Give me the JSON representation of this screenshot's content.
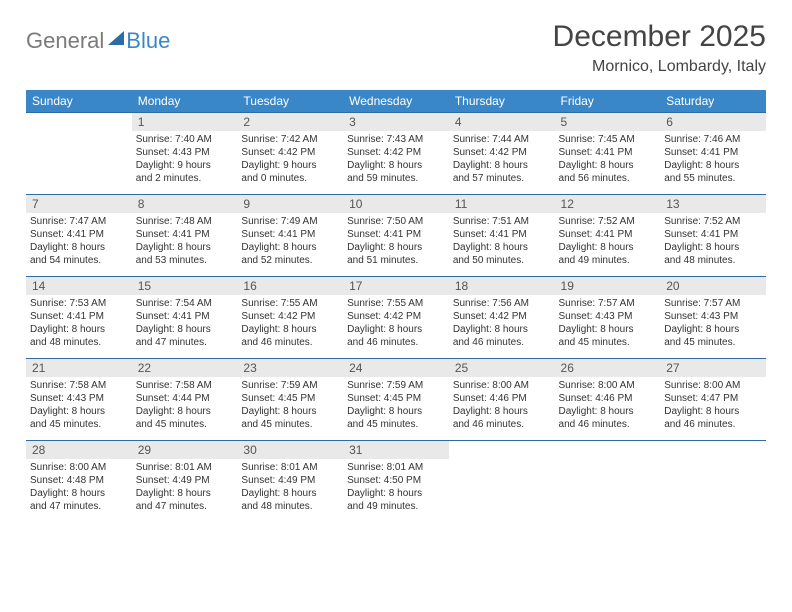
{
  "logo": {
    "part1": "General",
    "part2": "Blue"
  },
  "title": "December 2025",
  "subtitle": "Mornico, Lombardy, Italy",
  "colors": {
    "header_bg": "#3a87c7",
    "header_text": "#ffffff",
    "daynum_bg": "#e9e9e9",
    "border": "#2d6ca2",
    "logo_gray": "#7a7a7a",
    "logo_blue": "#3a87c7"
  },
  "weekdays": [
    "Sunday",
    "Monday",
    "Tuesday",
    "Wednesday",
    "Thursday",
    "Friday",
    "Saturday"
  ],
  "weeks": [
    [
      {
        "empty": true
      },
      {
        "n": "1",
        "sr": "Sunrise: 7:40 AM",
        "ss": "Sunset: 4:43 PM",
        "d1": "Daylight: 9 hours",
        "d2": "and 2 minutes."
      },
      {
        "n": "2",
        "sr": "Sunrise: 7:42 AM",
        "ss": "Sunset: 4:42 PM",
        "d1": "Daylight: 9 hours",
        "d2": "and 0 minutes."
      },
      {
        "n": "3",
        "sr": "Sunrise: 7:43 AM",
        "ss": "Sunset: 4:42 PM",
        "d1": "Daylight: 8 hours",
        "d2": "and 59 minutes."
      },
      {
        "n": "4",
        "sr": "Sunrise: 7:44 AM",
        "ss": "Sunset: 4:42 PM",
        "d1": "Daylight: 8 hours",
        "d2": "and 57 minutes."
      },
      {
        "n": "5",
        "sr": "Sunrise: 7:45 AM",
        "ss": "Sunset: 4:41 PM",
        "d1": "Daylight: 8 hours",
        "d2": "and 56 minutes."
      },
      {
        "n": "6",
        "sr": "Sunrise: 7:46 AM",
        "ss": "Sunset: 4:41 PM",
        "d1": "Daylight: 8 hours",
        "d2": "and 55 minutes."
      }
    ],
    [
      {
        "n": "7",
        "sr": "Sunrise: 7:47 AM",
        "ss": "Sunset: 4:41 PM",
        "d1": "Daylight: 8 hours",
        "d2": "and 54 minutes."
      },
      {
        "n": "8",
        "sr": "Sunrise: 7:48 AM",
        "ss": "Sunset: 4:41 PM",
        "d1": "Daylight: 8 hours",
        "d2": "and 53 minutes."
      },
      {
        "n": "9",
        "sr": "Sunrise: 7:49 AM",
        "ss": "Sunset: 4:41 PM",
        "d1": "Daylight: 8 hours",
        "d2": "and 52 minutes."
      },
      {
        "n": "10",
        "sr": "Sunrise: 7:50 AM",
        "ss": "Sunset: 4:41 PM",
        "d1": "Daylight: 8 hours",
        "d2": "and 51 minutes."
      },
      {
        "n": "11",
        "sr": "Sunrise: 7:51 AM",
        "ss": "Sunset: 4:41 PM",
        "d1": "Daylight: 8 hours",
        "d2": "and 50 minutes."
      },
      {
        "n": "12",
        "sr": "Sunrise: 7:52 AM",
        "ss": "Sunset: 4:41 PM",
        "d1": "Daylight: 8 hours",
        "d2": "and 49 minutes."
      },
      {
        "n": "13",
        "sr": "Sunrise: 7:52 AM",
        "ss": "Sunset: 4:41 PM",
        "d1": "Daylight: 8 hours",
        "d2": "and 48 minutes."
      }
    ],
    [
      {
        "n": "14",
        "sr": "Sunrise: 7:53 AM",
        "ss": "Sunset: 4:41 PM",
        "d1": "Daylight: 8 hours",
        "d2": "and 48 minutes."
      },
      {
        "n": "15",
        "sr": "Sunrise: 7:54 AM",
        "ss": "Sunset: 4:41 PM",
        "d1": "Daylight: 8 hours",
        "d2": "and 47 minutes."
      },
      {
        "n": "16",
        "sr": "Sunrise: 7:55 AM",
        "ss": "Sunset: 4:42 PM",
        "d1": "Daylight: 8 hours",
        "d2": "and 46 minutes."
      },
      {
        "n": "17",
        "sr": "Sunrise: 7:55 AM",
        "ss": "Sunset: 4:42 PM",
        "d1": "Daylight: 8 hours",
        "d2": "and 46 minutes."
      },
      {
        "n": "18",
        "sr": "Sunrise: 7:56 AM",
        "ss": "Sunset: 4:42 PM",
        "d1": "Daylight: 8 hours",
        "d2": "and 46 minutes."
      },
      {
        "n": "19",
        "sr": "Sunrise: 7:57 AM",
        "ss": "Sunset: 4:43 PM",
        "d1": "Daylight: 8 hours",
        "d2": "and 45 minutes."
      },
      {
        "n": "20",
        "sr": "Sunrise: 7:57 AM",
        "ss": "Sunset: 4:43 PM",
        "d1": "Daylight: 8 hours",
        "d2": "and 45 minutes."
      }
    ],
    [
      {
        "n": "21",
        "sr": "Sunrise: 7:58 AM",
        "ss": "Sunset: 4:43 PM",
        "d1": "Daylight: 8 hours",
        "d2": "and 45 minutes."
      },
      {
        "n": "22",
        "sr": "Sunrise: 7:58 AM",
        "ss": "Sunset: 4:44 PM",
        "d1": "Daylight: 8 hours",
        "d2": "and 45 minutes."
      },
      {
        "n": "23",
        "sr": "Sunrise: 7:59 AM",
        "ss": "Sunset: 4:45 PM",
        "d1": "Daylight: 8 hours",
        "d2": "and 45 minutes."
      },
      {
        "n": "24",
        "sr": "Sunrise: 7:59 AM",
        "ss": "Sunset: 4:45 PM",
        "d1": "Daylight: 8 hours",
        "d2": "and 45 minutes."
      },
      {
        "n": "25",
        "sr": "Sunrise: 8:00 AM",
        "ss": "Sunset: 4:46 PM",
        "d1": "Daylight: 8 hours",
        "d2": "and 46 minutes."
      },
      {
        "n": "26",
        "sr": "Sunrise: 8:00 AM",
        "ss": "Sunset: 4:46 PM",
        "d1": "Daylight: 8 hours",
        "d2": "and 46 minutes."
      },
      {
        "n": "27",
        "sr": "Sunrise: 8:00 AM",
        "ss": "Sunset: 4:47 PM",
        "d1": "Daylight: 8 hours",
        "d2": "and 46 minutes."
      }
    ],
    [
      {
        "n": "28",
        "sr": "Sunrise: 8:00 AM",
        "ss": "Sunset: 4:48 PM",
        "d1": "Daylight: 8 hours",
        "d2": "and 47 minutes."
      },
      {
        "n": "29",
        "sr": "Sunrise: 8:01 AM",
        "ss": "Sunset: 4:49 PM",
        "d1": "Daylight: 8 hours",
        "d2": "and 47 minutes."
      },
      {
        "n": "30",
        "sr": "Sunrise: 8:01 AM",
        "ss": "Sunset: 4:49 PM",
        "d1": "Daylight: 8 hours",
        "d2": "and 48 minutes."
      },
      {
        "n": "31",
        "sr": "Sunrise: 8:01 AM",
        "ss": "Sunset: 4:50 PM",
        "d1": "Daylight: 8 hours",
        "d2": "and 49 minutes."
      },
      {
        "empty": true
      },
      {
        "empty": true
      },
      {
        "empty": true
      }
    ]
  ]
}
